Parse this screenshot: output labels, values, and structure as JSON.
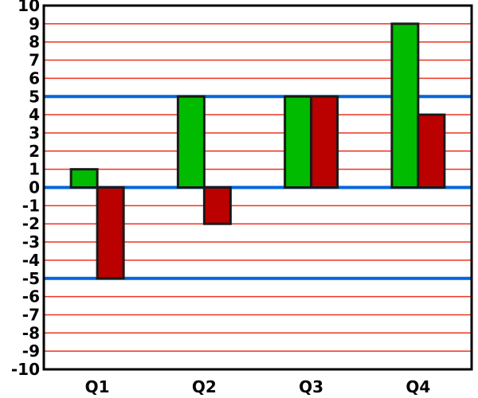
{
  "chart_data": {
    "type": "bar",
    "title": "",
    "xlabel": "",
    "ylabel": "",
    "categories": [
      "Q1",
      "Q2",
      "Q3",
      "Q4"
    ],
    "series": [
      {
        "values": [
          1,
          5,
          5,
          9
        ],
        "color": "#00bb00"
      },
      {
        "values": [
          -5,
          -2,
          5,
          4
        ],
        "color": "#bb0000"
      }
    ],
    "ylim": [
      -10,
      10
    ],
    "yticks": [
      "10",
      "9",
      "8",
      "7",
      "6",
      "5",
      "4",
      "3",
      "2",
      "1",
      "0",
      "-1",
      "-2",
      "-3",
      "-4",
      "-5",
      "-6",
      "-7",
      "-8",
      "-9",
      "-10"
    ],
    "reference_lines": [
      5,
      0,
      -5
    ],
    "grid": true,
    "grid_color": "#ee3322",
    "reference_line_color": "#0066dd",
    "bar_border_color": "#1a1a1a"
  }
}
